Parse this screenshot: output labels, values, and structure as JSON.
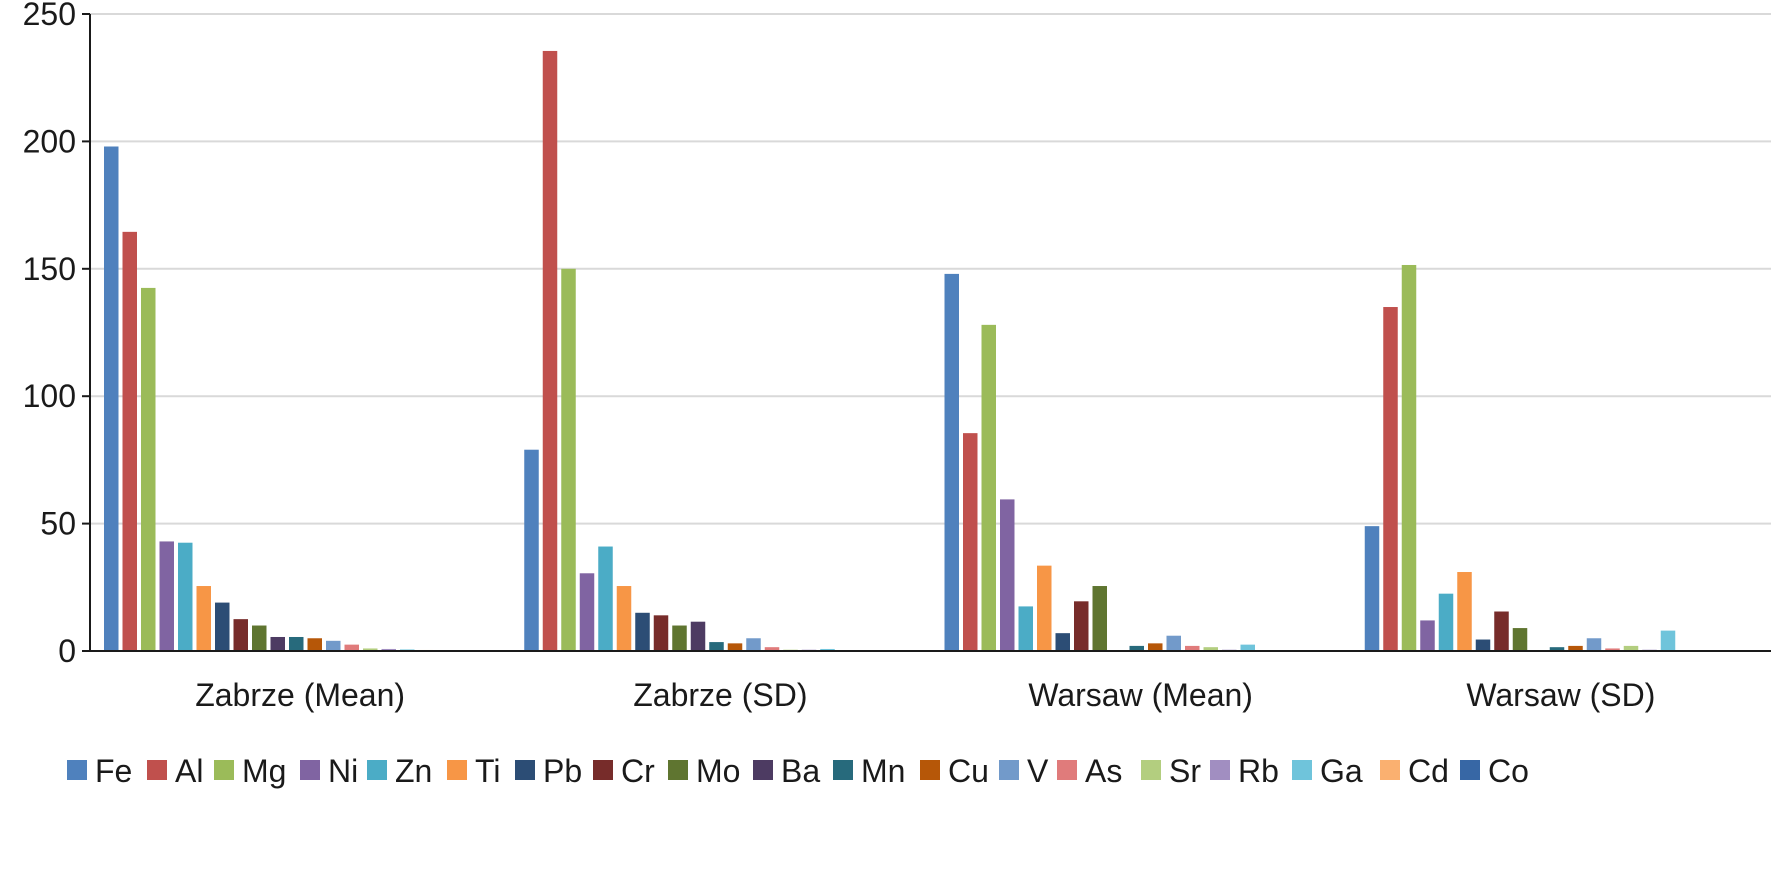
{
  "chart_data": {
    "type": "bar",
    "categories": [
      "Zabrze (Mean)",
      "Zabrze (SD)",
      "Warsaw (Mean)",
      "Warsaw (SD)"
    ],
    "ylim": [
      0,
      250
    ],
    "yticks": [
      0,
      50,
      100,
      150,
      200,
      250
    ],
    "grid": true,
    "legend": "bottom",
    "series": [
      {
        "name": "Fe",
        "color": "#4F81BD",
        "values": [
          198,
          79,
          148,
          49
        ]
      },
      {
        "name": "Al",
        "color": "#C0504D",
        "values": [
          164.5,
          235.5,
          85.5,
          135
        ]
      },
      {
        "name": "Mg",
        "color": "#9BBB59",
        "values": [
          142.5,
          150,
          128,
          151.5
        ]
      },
      {
        "name": "Ni",
        "color": "#8064A2",
        "values": [
          43,
          30.5,
          59.5,
          12
        ]
      },
      {
        "name": "Zn",
        "color": "#4BACC6",
        "values": [
          42.5,
          41,
          17.5,
          22.5
        ]
      },
      {
        "name": "Ti",
        "color": "#F79646",
        "values": [
          25.5,
          25.5,
          33.5,
          31
        ]
      },
      {
        "name": "Pb",
        "color": "#2C4D75",
        "values": [
          19,
          15,
          7,
          4.5
        ]
      },
      {
        "name": "Cr",
        "color": "#772C2A",
        "values": [
          12.5,
          14,
          19.5,
          15.5
        ]
      },
      {
        "name": "Mo",
        "color": "#5F7530",
        "values": [
          10,
          10,
          25.5,
          9
        ]
      },
      {
        "name": "Ba",
        "color": "#4D3B62",
        "values": [
          5.5,
          11.5,
          0,
          0
        ]
      },
      {
        "name": "Mn",
        "color": "#276A7C",
        "values": [
          5.5,
          3.5,
          2,
          1.5
        ]
      },
      {
        "name": "Cu",
        "color": "#B65708",
        "values": [
          5,
          3,
          3,
          2
        ]
      },
      {
        "name": "V",
        "color": "#729ACA",
        "values": [
          4,
          5,
          6,
          5
        ]
      },
      {
        "name": "As",
        "color": "#E07B7B",
        "values": [
          2.5,
          1.5,
          2,
          1
        ]
      },
      {
        "name": "Sr",
        "color": "#B3CE7F",
        "values": [
          1,
          0.5,
          1.5,
          2
        ]
      },
      {
        "name": "Rb",
        "color": "#A18EC1",
        "values": [
          0.8,
          0.5,
          0.5,
          0.5
        ]
      },
      {
        "name": "Ga",
        "color": "#6FC4DB",
        "values": [
          0.6,
          0.8,
          2.5,
          8
        ]
      },
      {
        "name": "Cd",
        "color": "#FAB070",
        "values": [
          0.4,
          0.3,
          0.3,
          0.3
        ]
      },
      {
        "name": "Co",
        "color": "#3767A5",
        "values": [
          0.3,
          0.3,
          0.3,
          0.3
        ]
      }
    ]
  }
}
